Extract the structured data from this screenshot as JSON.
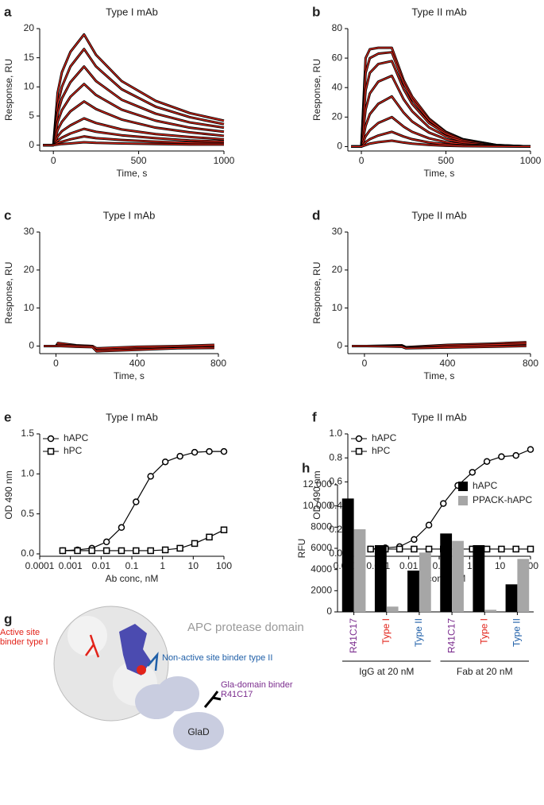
{
  "chart_data": [
    {
      "type": "line",
      "panel": "a",
      "title": "Type I mAb",
      "xlabel": "Time, s",
      "ylabel": "Response, RU",
      "xlim": [
        -80,
        1000
      ],
      "xticks": [
        0,
        500,
        1000
      ],
      "ylim": [
        -1,
        20
      ],
      "yticks": [
        0,
        5,
        10,
        15,
        20
      ],
      "color": "#000000",
      "fit_color": "#e8291c",
      "x": [
        -60,
        0,
        25,
        50,
        100,
        180,
        250,
        400,
        600,
        800,
        1000
      ],
      "series": [
        {
          "values": [
            0,
            0,
            9,
            12.5,
            16,
            19,
            15.5,
            11,
            7.6,
            5.5,
            4.2
          ]
        },
        {
          "values": [
            0,
            0,
            7,
            10,
            13.5,
            16.5,
            13.5,
            9.6,
            6.6,
            4.8,
            3.6
          ]
        },
        {
          "values": [
            0,
            0,
            5.5,
            8,
            10.8,
            13.5,
            11,
            7.8,
            5.4,
            3.9,
            3
          ]
        },
        {
          "values": [
            0,
            0,
            4,
            6,
            8.3,
            10.5,
            8.6,
            6.1,
            4.2,
            3,
            2.3
          ]
        },
        {
          "values": [
            0,
            0,
            2.6,
            4,
            5.8,
            7.5,
            6.2,
            4.4,
            3,
            2.2,
            1.6
          ]
        },
        {
          "values": [
            0,
            0,
            1.5,
            2.4,
            3.4,
            4.6,
            3.8,
            2.7,
            1.9,
            1.4,
            1
          ]
        },
        {
          "values": [
            0,
            0,
            0.8,
            1.3,
            2,
            2.8,
            2.3,
            1.7,
            1.2,
            0.8,
            0.6
          ]
        },
        {
          "values": [
            0,
            0,
            0.4,
            0.6,
            1,
            1.5,
            1.2,
            0.9,
            0.6,
            0.4,
            0.3
          ]
        },
        {
          "values": [
            0,
            0,
            0.1,
            0.2,
            0.3,
            0.5,
            0.4,
            0.3,
            0.2,
            0.1,
            0.1
          ]
        }
      ]
    },
    {
      "type": "line",
      "panel": "b",
      "title": "Type II mAb",
      "xlabel": "Time, s",
      "ylabel": "Response, RU",
      "xlim": [
        -80,
        1000
      ],
      "xticks": [
        0,
        500,
        1000
      ],
      "ylim": [
        -3,
        80
      ],
      "yticks": [
        0,
        20,
        40,
        60,
        80
      ],
      "color": "#000000",
      "fit_color": "#e8291c",
      "x": [
        -60,
        0,
        25,
        50,
        100,
        180,
        250,
        300,
        400,
        500,
        600,
        800,
        1000
      ],
      "series": [
        {
          "values": [
            0,
            0,
            60,
            66,
            67,
            67,
            45,
            34,
            19,
            10,
            5,
            1,
            0
          ]
        },
        {
          "values": [
            0,
            0,
            50,
            60,
            63,
            64,
            43,
            32,
            18,
            9.5,
            4.8,
            1,
            0
          ]
        },
        {
          "values": [
            0,
            0,
            38,
            50,
            56,
            58,
            39,
            29,
            16,
            8.6,
            4.4,
            0.9,
            0
          ]
        },
        {
          "values": [
            0,
            0,
            25,
            36,
            44,
            48,
            32,
            24,
            13,
            7,
            3.6,
            0.8,
            0
          ]
        },
        {
          "values": [
            0,
            0,
            14,
            22,
            29,
            34,
            23,
            17,
            9.5,
            5,
            2.6,
            0.5,
            0
          ]
        },
        {
          "values": [
            0,
            0,
            7,
            11,
            16,
            20,
            13.5,
            10,
            5.6,
            3,
            1.5,
            0.3,
            0
          ]
        },
        {
          "values": [
            0,
            0,
            3,
            5,
            7.5,
            10,
            6.8,
            5,
            2.8,
            1.5,
            0.8,
            0.2,
            0
          ]
        },
        {
          "values": [
            0,
            0,
            1,
            2,
            3,
            4,
            2.7,
            2,
            1.1,
            0.6,
            0.3,
            0.1,
            0
          ]
        }
      ]
    },
    {
      "type": "line",
      "panel": "c",
      "title": "Type I mAb",
      "xlabel": "Time, s",
      "ylabel": "Response, RU",
      "xlim": [
        -80,
        800
      ],
      "xticks": [
        0,
        400,
        800
      ],
      "ylim": [
        -2,
        30
      ],
      "yticks": [
        0,
        10,
        20,
        30
      ],
      "color": "#000000",
      "fit_color": "#e8291c",
      "x": [
        -60,
        0,
        10,
        100,
        180,
        200,
        400,
        600,
        780
      ],
      "series": [
        {
          "values": [
            0,
            0,
            0.8,
            0.2,
            0,
            -1,
            -0.5,
            -0.3,
            0
          ]
        },
        {
          "values": [
            0,
            0,
            0.3,
            0.1,
            0,
            -0.6,
            -0.2,
            0,
            0.3
          ]
        },
        {
          "values": [
            0,
            0,
            0,
            -0.2,
            -0.3,
            -1.4,
            -1,
            -0.6,
            -0.5
          ]
        }
      ]
    },
    {
      "type": "line",
      "panel": "d",
      "title": "Type II mAb",
      "xlabel": "Time, s",
      "ylabel": "Response, RU",
      "xlim": [
        -80,
        800
      ],
      "xticks": [
        0,
        400,
        800
      ],
      "ylim": [
        -2,
        30
      ],
      "yticks": [
        0,
        10,
        20,
        30
      ],
      "color": "#000000",
      "fit_color": "#e8291c",
      "x": [
        -60,
        0,
        10,
        100,
        180,
        200,
        400,
        600,
        780
      ],
      "series": [
        {
          "values": [
            0,
            0,
            0,
            0.1,
            0.2,
            -0.3,
            0.3,
            0.6,
            1
          ]
        },
        {
          "values": [
            0,
            0,
            0,
            0,
            0,
            -0.5,
            0,
            0.3,
            0.6
          ]
        },
        {
          "values": [
            0,
            0,
            0,
            -0.1,
            -0.2,
            -0.6,
            -0.4,
            -0.2,
            0
          ]
        }
      ]
    },
    {
      "type": "line",
      "panel": "e",
      "title": "Type I mAb",
      "xlabel": "Ab conc, nM",
      "ylabel": "OD 490 nm",
      "xscale": "log",
      "xlim": [
        0.0001,
        100
      ],
      "xticks": [
        0.0001,
        0.001,
        0.01,
        0.1,
        1,
        10,
        100
      ],
      "ylim": [
        -0.03,
        1.5
      ],
      "yticks": [
        {
          "value": 0,
          "label": "0.0"
        },
        0.5,
        {
          "value": 1,
          "label": "1.0"
        },
        1.5
      ],
      "color": "#000000",
      "legend": "upper left",
      "x": [
        0.00056,
        0.0017,
        0.005,
        0.015,
        0.046,
        0.137,
        0.41,
        1.23,
        3.7,
        11.1,
        33.3,
        100
      ],
      "series": [
        {
          "name": "hAPC",
          "marker": "circle",
          "values": [
            0.04,
            0.05,
            0.07,
            0.15,
            0.33,
            0.65,
            0.97,
            1.15,
            1.22,
            1.27,
            1.28,
            1.28
          ]
        },
        {
          "name": "hPC",
          "marker": "square",
          "values": [
            0.04,
            0.04,
            0.04,
            0.04,
            0.04,
            0.04,
            0.04,
            0.05,
            0.07,
            0.13,
            0.21,
            0.3
          ]
        }
      ]
    },
    {
      "type": "line",
      "panel": "f",
      "title": "Type II mAb",
      "xlabel": "Ab conc, nM",
      "ylabel": "OD 490 nm",
      "xscale": "log",
      "xlim": [
        0.0001,
        100
      ],
      "xticks": [
        0.0001,
        0.001,
        0.01,
        0.1,
        1,
        10,
        100
      ],
      "ylim": [
        -0.02,
        1
      ],
      "yticks": [
        {
          "value": 0,
          "label": "0.0"
        },
        0.2,
        0.4,
        0.6,
        0.8,
        {
          "value": 1,
          "label": "1.0"
        }
      ],
      "color": "#000000",
      "legend": "upper left",
      "x": [
        0.00056,
        0.0017,
        0.005,
        0.015,
        0.046,
        0.137,
        0.41,
        1.23,
        3.7,
        11.1,
        33.3,
        100
      ],
      "series": [
        {
          "name": "hAPC",
          "marker": "circle",
          "values": [
            0.04,
            0.05,
            0.06,
            0.12,
            0.24,
            0.42,
            0.57,
            0.68,
            0.77,
            0.81,
            0.82,
            0.87
          ]
        },
        {
          "name": "hPC",
          "marker": "square",
          "values": [
            0.04,
            0.04,
            0.04,
            0.04,
            0.04,
            0.04,
            0.04,
            0.04,
            0.04,
            0.04,
            0.04,
            0.04
          ]
        }
      ]
    },
    {
      "type": "bar",
      "panel": "h",
      "ylabel": "RFU",
      "legend": "upper right",
      "ylim": [
        0,
        12000
      ],
      "yticks": [
        0,
        2000,
        4000,
        6000,
        8000,
        {
          "value": 10000,
          "label": "10,000"
        },
        {
          "value": 12000,
          "label": "12,000"
        }
      ],
      "categories": [
        "R41C17",
        "Type I",
        "Type II",
        "R41C17",
        "Type I",
        "Type II"
      ],
      "category_colors": [
        "#7b2d8e",
        "#e2231a",
        "#1f5fa8",
        "#7b2d8e",
        "#e2231a",
        "#1f5fa8"
      ],
      "groups": [
        "IgG at 20 nM",
        "Fab at 20 nM"
      ],
      "series": [
        {
          "name": "hAPC",
          "color": "#000000",
          "values": [
            10700,
            6300,
            3900,
            7400,
            6300,
            2600
          ]
        },
        {
          "name": "PPACK-hAPC",
          "color": "#a6a6a6",
          "values": [
            7800,
            500,
            5600,
            6700,
            200,
            5000
          ]
        }
      ]
    }
  ],
  "diagram": {
    "panel": "g",
    "domain_label": "APC protease domain",
    "type1_label": "Active site binder type I",
    "type2_label": "Non-active site binder type II",
    "gla_label": "Gla-domain binder R41C17",
    "glad_label": "GlaD"
  }
}
